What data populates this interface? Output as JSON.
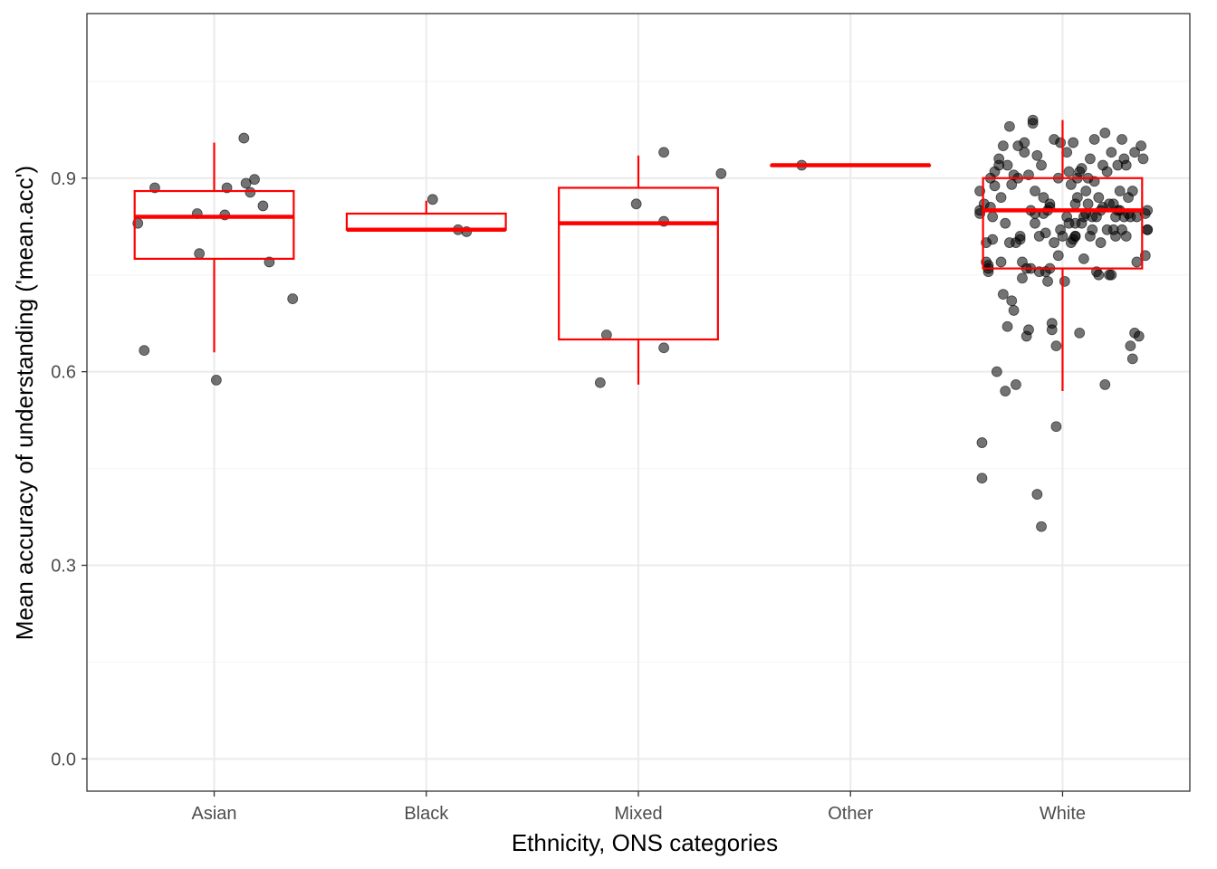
{
  "chart_data": {
    "type": "box+jitter",
    "xlabel": "Ethnicity, ONS categories",
    "ylabel": "Mean accuracy of understanding ('mean.acc')",
    "categories": [
      "Asian",
      "Black",
      "Mixed",
      "Other",
      "White"
    ],
    "ylim": [
      -0.05,
      1.155
    ],
    "yticks": [
      0.0,
      0.3,
      0.6,
      0.9
    ],
    "ytick_labels": [
      "0.0",
      "0.3",
      "0.6",
      "0.9"
    ],
    "grid": true,
    "colors": {
      "box": "#ff0000",
      "points": "#000000",
      "points_alpha": 0.55,
      "grid_major": "#ebebeb",
      "grid_minor": "#f5f5f5",
      "panel_border": "#333333"
    },
    "boxes": [
      {
        "category": "Asian",
        "whisker_low": 0.63,
        "q1": 0.775,
        "median": 0.84,
        "q3": 0.88,
        "whisker_high": 0.955
      },
      {
        "category": "Black",
        "whisker_low": 0.82,
        "q1": 0.82,
        "median": 0.82,
        "q3": 0.845,
        "whisker_high": 0.865
      },
      {
        "category": "Mixed",
        "whisker_low": 0.58,
        "q1": 0.65,
        "median": 0.83,
        "q3": 0.885,
        "whisker_high": 0.935
      },
      {
        "category": "Other",
        "whisker_low": 0.92,
        "q1": 0.92,
        "median": 0.92,
        "q3": 0.92,
        "whisker_high": 0.92
      },
      {
        "category": "White",
        "whisker_low": 0.57,
        "q1": 0.76,
        "median": 0.85,
        "q3": 0.9,
        "whisker_high": 0.99
      }
    ],
    "points": [
      {
        "category": "Asian",
        "x": [
          -0.36,
          -0.33,
          -0.28,
          -0.08,
          -0.07,
          0.01,
          0.05,
          0.06,
          0.14,
          0.15,
          0.17,
          0.19,
          0.23,
          0.26,
          0.37
        ],
        "y": [
          0.83,
          0.633,
          0.885,
          0.845,
          0.783,
          0.587,
          0.843,
          0.885,
          0.962,
          0.892,
          0.878,
          0.898,
          0.857,
          0.77,
          0.713
        ]
      },
      {
        "category": "Black",
        "x": [
          0.03,
          0.15,
          0.19
        ],
        "y": [
          0.867,
          0.82,
          0.817
        ]
      },
      {
        "category": "Mixed",
        "x": [
          -0.18,
          -0.15,
          -0.01,
          0.12,
          0.12,
          0.12,
          0.39
        ],
        "y": [
          0.583,
          0.657,
          0.86,
          0.833,
          0.637,
          0.94,
          0.907
        ]
      },
      {
        "category": "Other",
        "x": [
          -0.23
        ],
        "y": [
          0.92
        ]
      },
      {
        "category": "White",
        "x": [
          -0.39,
          -0.39,
          -0.38,
          -0.38,
          -0.37,
          -0.36,
          -0.36,
          -0.35,
          -0.35,
          -0.34,
          -0.34,
          -0.33,
          -0.33,
          -0.32,
          -0.32,
          -0.31,
          -0.3,
          -0.3,
          -0.29,
          -0.29,
          -0.28,
          -0.28,
          -0.27,
          -0.27,
          -0.26,
          -0.26,
          -0.25,
          -0.25,
          -0.24,
          -0.24,
          -0.23,
          -0.23,
          -0.22,
          -0.22,
          -0.21,
          -0.21,
          -0.2,
          -0.2,
          -0.19,
          -0.19,
          -0.18,
          -0.18,
          -0.17,
          -0.17,
          -0.16,
          -0.16,
          -0.15,
          -0.15,
          -0.14,
          -0.14,
          -0.13,
          -0.13,
          -0.12,
          -0.12,
          -0.11,
          -0.11,
          -0.1,
          -0.1,
          -0.09,
          -0.09,
          -0.08,
          -0.08,
          -0.07,
          -0.07,
          -0.06,
          -0.06,
          -0.05,
          -0.05,
          -0.04,
          -0.04,
          -0.03,
          -0.03,
          -0.02,
          -0.02,
          -0.01,
          -0.01,
          0.0,
          0.01,
          0.02,
          0.02,
          0.03,
          0.03,
          0.04,
          0.04,
          0.05,
          0.05,
          0.06,
          0.06,
          0.07,
          0.07,
          0.08,
          0.08,
          0.09,
          0.09,
          0.1,
          0.1,
          0.11,
          0.11,
          0.12,
          0.12,
          0.13,
          0.13,
          0.14,
          0.14,
          0.15,
          0.15,
          0.16,
          0.16,
          0.17,
          0.17,
          0.18,
          0.18,
          0.19,
          0.19,
          0.2,
          0.2,
          0.21,
          0.21,
          0.22,
          0.22,
          0.23,
          0.23,
          0.24,
          0.24,
          0.25,
          0.25,
          0.26,
          0.26,
          0.27,
          0.27,
          0.28,
          0.28,
          0.29,
          0.29,
          0.3,
          0.3,
          0.31,
          0.31,
          0.32,
          0.32,
          0.33,
          0.33,
          0.34,
          0.34,
          0.35,
          0.35,
          0.36,
          0.37,
          0.38,
          0.39,
          0.4,
          0.4,
          0.4,
          0.39,
          -0.39,
          -0.35,
          -0.13,
          -0.06,
          0.06,
          0.06
        ],
        "y": [
          0.85,
          0.845,
          0.49,
          0.435,
          0.86,
          0.77,
          0.8,
          0.76,
          0.765,
          0.9,
          0.855,
          0.84,
          0.805,
          0.888,
          0.91,
          0.6,
          0.93,
          0.92,
          0.77,
          0.87,
          0.72,
          0.95,
          0.83,
          0.57,
          0.92,
          0.67,
          0.98,
          0.8,
          0.89,
          0.71,
          0.695,
          0.905,
          0.58,
          0.8,
          0.9,
          0.95,
          0.81,
          0.805,
          0.745,
          0.77,
          0.94,
          0.955,
          0.76,
          0.655,
          0.905,
          0.665,
          0.76,
          0.85,
          0.99,
          0.985,
          0.88,
          0.83,
          0.935,
          0.41,
          0.755,
          0.81,
          0.92,
          0.36,
          0.845,
          0.87,
          0.755,
          0.815,
          0.74,
          0.85,
          0.86,
          0.855,
          0.675,
          0.665,
          0.96,
          0.8,
          0.515,
          0.64,
          0.78,
          0.9,
          0.955,
          0.82,
          0.81,
          0.74,
          0.84,
          0.94,
          0.83,
          0.91,
          0.8,
          0.89,
          0.955,
          0.805,
          0.83,
          0.86,
          0.87,
          0.9,
          0.91,
          0.66,
          0.83,
          0.915,
          0.775,
          0.84,
          0.88,
          0.845,
          0.9,
          0.86,
          0.81,
          0.93,
          0.84,
          0.82,
          0.895,
          0.96,
          0.84,
          0.755,
          0.87,
          0.75,
          0.8,
          0.85,
          0.92,
          0.855,
          0.97,
          0.58,
          0.91,
          0.82,
          0.75,
          0.86,
          0.75,
          0.94,
          0.82,
          0.86,
          0.81,
          0.84,
          0.92,
          0.85,
          0.88,
          0.85,
          0.96,
          0.82,
          0.93,
          0.84,
          0.92,
          0.81,
          0.87,
          0.845,
          0.64,
          0.84,
          0.88,
          0.62,
          0.66,
          0.94,
          0.77,
          0.84,
          0.655,
          0.95,
          0.93,
          0.845,
          0.85,
          0.82,
          0.82,
          0.78,
          0.88,
          0.755,
          0.845,
          0.76,
          0.81,
          0.81
        ]
      }
    ]
  }
}
